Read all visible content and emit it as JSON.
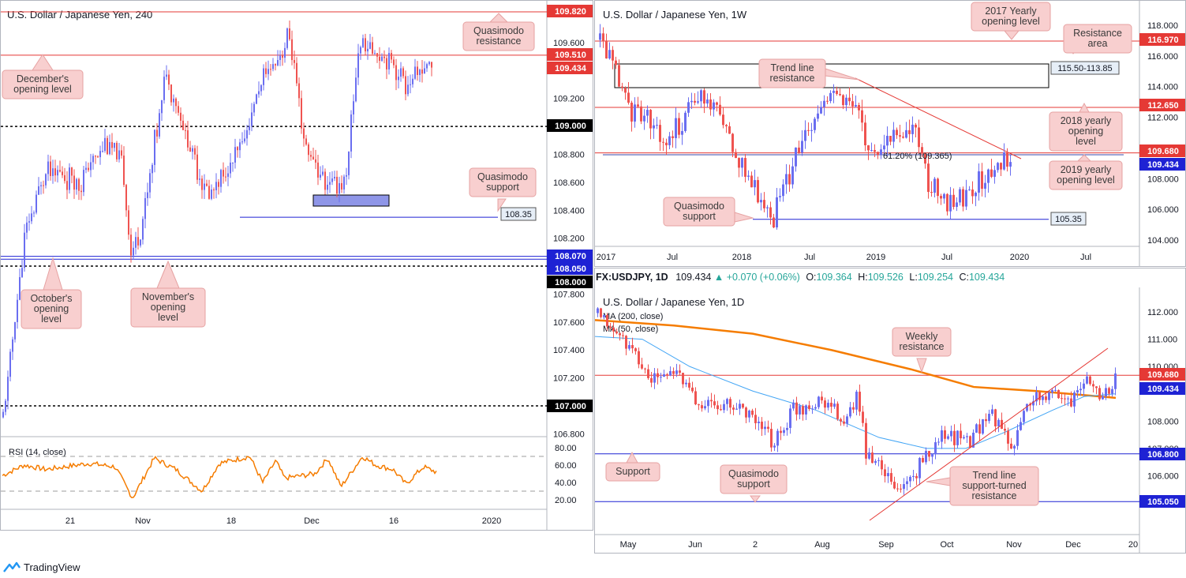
{
  "brand": {
    "name": "TradingView"
  },
  "colors": {
    "bull": "#6a6ef0",
    "bear": "#ef5350",
    "red": "#e53935",
    "blue": "#1e22d4",
    "orange": "#f57c00",
    "ma_blue": "#42a5f5",
    "note_bg": "#f8cfcf",
    "note_border": "#e6a2a2",
    "rsi": "#f57c00",
    "green": "#26a69a"
  },
  "panel_h4": {
    "title": "U.S. Dollar / Japanese Yen, 240",
    "y_ticks": [
      "109.600",
      "109.200",
      "108.800",
      "108.600",
      "108.400",
      "108.200",
      "107.800",
      "107.600",
      "107.400",
      "107.200",
      "106.800"
    ],
    "x_ticks": [
      "21",
      "Nov",
      "18",
      "Dec",
      "16",
      "2020"
    ],
    "price_tags": [
      {
        "label": "109.820",
        "color": "#e53935"
      },
      {
        "label": "109.510",
        "color": "#e53935"
      },
      {
        "label": "109.434",
        "color": "#e53935"
      },
      {
        "label": "109.000",
        "color": "#000000"
      },
      {
        "label": "108.070",
        "color": "#1e22d4"
      },
      {
        "label": "108.050",
        "color": "#1e22d4"
      },
      {
        "label": "108.000",
        "color": "#000000"
      },
      {
        "label": "107.000",
        "color": "#000000"
      }
    ],
    "notes": {
      "qm_res": [
        "Quasimodo",
        "resistance"
      ],
      "dec_open": [
        "December's",
        "opening level"
      ],
      "qm_sup": [
        "Quasimodo",
        "support"
      ],
      "oct_open": [
        "October's",
        "opening",
        "level"
      ],
      "nov_open": [
        "November's",
        "opening",
        "level"
      ]
    },
    "box_108_35": "108.35",
    "rsi": {
      "label": "RSI (14, close)",
      "ticks": [
        "80.00",
        "60.00",
        "40.00",
        "20.00"
      ]
    }
  },
  "panel_w1": {
    "title": "U.S. Dollar / Japanese Yen, 1W",
    "y_ticks": [
      "118.000",
      "116.000",
      "114.000",
      "112.000",
      "108.000",
      "106.000",
      "104.000"
    ],
    "x_ticks": [
      "2017",
      "Jul",
      "2018",
      "Jul",
      "2019",
      "Jul",
      "2020",
      "Jul"
    ],
    "price_tags": [
      {
        "label": "116.970",
        "color": "#e53935"
      },
      {
        "label": "112.650",
        "color": "#e53935"
      },
      {
        "label": "109.680",
        "color": "#e53935"
      },
      {
        "label": "109.434",
        "color": "#1e22d4"
      }
    ],
    "notes": {
      "yearly_2017": [
        "2017 Yearly",
        "opening level"
      ],
      "res_area": [
        "Resistance",
        "area"
      ],
      "tl_res": [
        "Trend line",
        "resistance"
      ],
      "y2018": [
        "2018 yearly",
        "opening",
        "level"
      ],
      "y2019": [
        "2019 yearly",
        "opening level"
      ],
      "qm_sup": [
        "Quasimodo",
        "support"
      ]
    },
    "range_box": "115.50-113.85",
    "fib": "61.20% (109.365)",
    "box_105_35": "105.35"
  },
  "panel_d1": {
    "header": {
      "symbol": "FX:USDJPY, 1D",
      "last": "109.434",
      "change": "+0.070 (+0.06%)",
      "o_lbl": "O:",
      "o": "109.364",
      "h_lbl": "H:",
      "h": "109.526",
      "l_lbl": "L:",
      "l": "109.254",
      "c_lbl": "C:",
      "c": "109.434"
    },
    "title": "U.S. Dollar / Japanese Yen, 1D",
    "ma_labels": [
      "MA (200, close)",
      "MA (50, close)"
    ],
    "y_ticks": [
      "112.000",
      "111.000",
      "110.000",
      "108.000",
      "107.000",
      "106.000"
    ],
    "x_ticks": [
      "May",
      "Jun",
      "2",
      "Aug",
      "Sep",
      "Oct",
      "Nov",
      "Dec",
      "20"
    ],
    "price_tags": [
      {
        "label": "109.680",
        "color": "#e53935"
      },
      {
        "label": "109.434",
        "color": "#1e22d4"
      },
      {
        "label": "106.800",
        "color": "#1e22d4"
      },
      {
        "label": "105.050",
        "color": "#1e22d4"
      }
    ],
    "notes": {
      "weekly_res": [
        "Weekly",
        "resistance"
      ],
      "support": [
        "Support"
      ],
      "qm_sup": [
        "Quasimodo",
        "support"
      ],
      "tl_sup": [
        "Trend line",
        "support-turned",
        "resistance"
      ]
    }
  }
}
